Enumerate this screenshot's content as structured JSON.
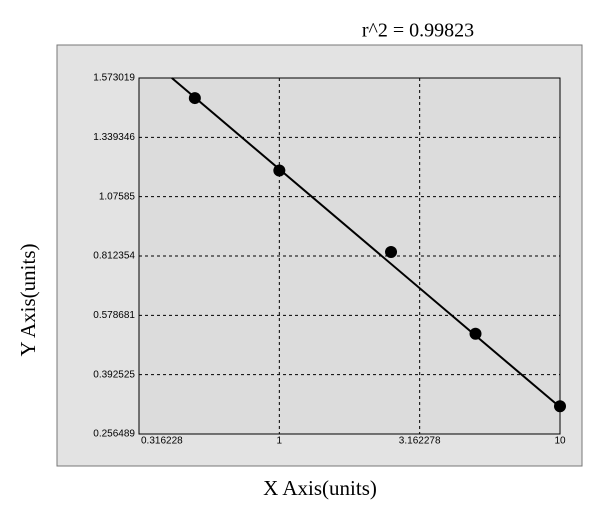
{
  "chart_data": {
    "type": "scatter",
    "annotation": "r^2  =  0.99823",
    "xlabel": "X Axis(units)",
    "ylabel": "Y Axis(units)",
    "x": [
      0.5,
      1,
      2.5,
      5,
      10
    ],
    "values": [
      1.494,
      1.192,
      0.83,
      0.521,
      0.32
    ],
    "fit": {
      "x": [
        0.414,
        10
      ],
      "values": [
        1.573019,
        0.318
      ]
    },
    "color": "#000000",
    "xscale": "log",
    "xlim": [
      0.316228,
      10
    ],
    "xticks": [
      0.316228,
      1,
      3.162278,
      10
    ],
    "ylim": [
      0.256489,
      1.573019
    ],
    "yticks": [
      0.256489,
      0.392525,
      0.578681,
      0.812354,
      1.07585,
      1.339346,
      1.573019
    ],
    "grid": true
  }
}
